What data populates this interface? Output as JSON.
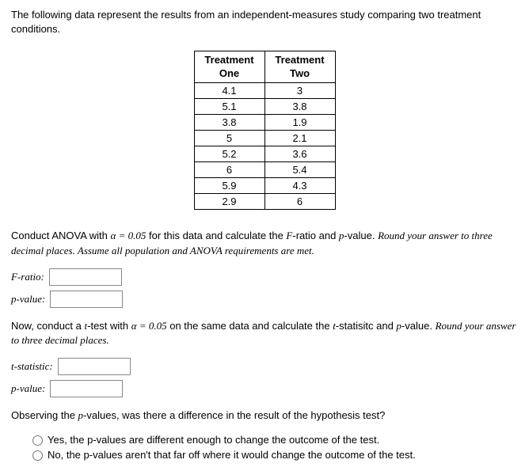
{
  "intro": "The following data represent the results from an independent-measures study comparing two treatment conditions.",
  "table": {
    "headers": [
      "Treatment One",
      "Treatment Two"
    ],
    "rows": [
      [
        "4.1",
        "3"
      ],
      [
        "5.1",
        "3.8"
      ],
      [
        "3.8",
        "1.9"
      ],
      [
        "5",
        "2.1"
      ],
      [
        "5.2",
        "3.6"
      ],
      [
        "6",
        "5.4"
      ],
      [
        "5.9",
        "4.3"
      ],
      [
        "2.9",
        "6"
      ]
    ]
  },
  "anova": {
    "prefix": "Conduct ANOVA with ",
    "alpha_eq": "α = 0.05",
    "mid1": " for this data and calculate the ",
    "f_label_inline": "F",
    "mid2": "-ratio and ",
    "p_inline": "p",
    "mid3": "-value. ",
    "italic_tail": "Round your answer to three decimal places. Assume all population and ANOVA requirements are met.",
    "f_ratio_label": "F-ratio:",
    "p_value_label": "p-value:"
  },
  "ttest": {
    "prefix": "Now, conduct a ",
    "t_inline": "t",
    "mid1": "-test with ",
    "alpha_eq": "α = 0.05",
    "mid2": " on the same data and calculate the ",
    "t2_inline": "t",
    "mid3": "-statisitc and ",
    "p_inline": "p",
    "mid4": "-value. ",
    "italic_tail": "Round your answer to three decimal places.",
    "t_stat_label": "t-statistic:",
    "p_value_label": "p-value:"
  },
  "obs": {
    "question_prefix": "Observing the ",
    "p_inline": "p",
    "question_suffix": "-values, was there a difference in the result of the hypothesis test?",
    "opt1": "Yes, the p-values are different enough to change the outcome of the test.",
    "opt2": "No, the p-values aren't that far off where it would change the outcome of the test."
  }
}
